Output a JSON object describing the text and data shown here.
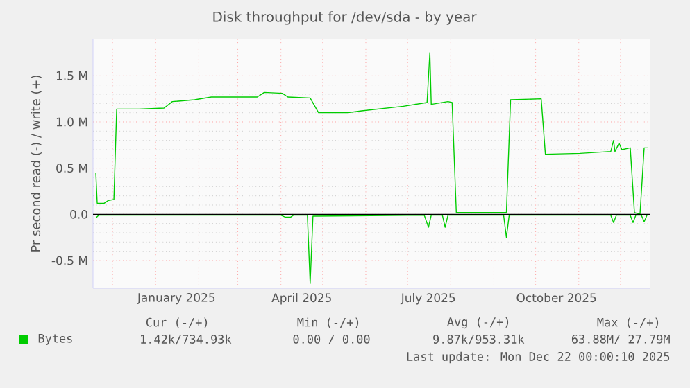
{
  "chart_data": {
    "type": "line",
    "title": "Disk throughput for /dev/sda - by year",
    "ylabel": "Pr second read (-) / write (+)",
    "xlim": [
      "2024-11-17",
      "2025-12-22"
    ],
    "xticks": [
      {
        "value": "2024-12-01",
        "label": null
      },
      {
        "value": "2025-01-01",
        "label": null
      },
      {
        "value": "2025-02-01",
        "label": null
      },
      {
        "value": "2025-03-01",
        "label": null
      },
      {
        "value": "2025-04-01",
        "label": null
      },
      {
        "value": "2025-05-01",
        "label": null
      },
      {
        "value": "2025-06-01",
        "label": null
      },
      {
        "value": "2025-07-01",
        "label": null
      },
      {
        "value": "2025-08-01",
        "label": null
      },
      {
        "value": "2025-09-01",
        "label": null
      },
      {
        "value": "2025-10-01",
        "label": null
      },
      {
        "value": "2025-11-01",
        "label": null
      },
      {
        "value": "2025-12-01",
        "label": null
      },
      {
        "value": "2025-01-16",
        "label": "January 2025"
      },
      {
        "value": "2025-04-16",
        "label": "April 2025"
      },
      {
        "value": "2025-07-16",
        "label": "July 2025"
      },
      {
        "value": "2025-10-16",
        "label": "October 2025"
      }
    ],
    "ylim": [
      -0.8,
      1.9
    ],
    "yticks": [
      {
        "value": -0.5,
        "label": "-0.5 M"
      },
      {
        "value": 0,
        "label": "0.0"
      },
      {
        "value": 0.5,
        "label": "0.5 M"
      },
      {
        "value": 1.0,
        "label": "1.0 M"
      },
      {
        "value": 1.5,
        "label": "1.5 M"
      }
    ],
    "series": [
      {
        "name": "Bytes",
        "color": "#00cc00",
        "x": [
          "2024-11-19",
          "2024-11-20",
          "2024-11-25",
          "2024-11-28",
          "2024-12-02",
          "2024-12-04",
          "2024-12-20",
          "2025-01-07",
          "2025-01-13",
          "2025-01-29",
          "2025-02-10",
          "2025-03-15",
          "2025-03-20",
          "2025-04-02",
          "2025-04-06",
          "2025-04-22",
          "2025-04-28",
          "2025-05-19",
          "2025-05-29",
          "2025-06-28",
          "2025-07-15",
          "2025-07-17",
          "2025-07-18",
          "2025-07-30",
          "2025-08-02",
          "2025-08-05",
          "2025-09-10",
          "2025-09-13",
          "2025-10-05",
          "2025-10-08",
          "2025-11-02",
          "2025-11-24",
          "2025-11-26",
          "2025-11-27",
          "2025-11-30",
          "2025-12-02",
          "2025-12-08",
          "2025-12-11",
          "2025-12-15",
          "2025-12-18",
          "2025-12-21"
        ],
        "values": [
          0.45,
          0.12,
          0.12,
          0.15,
          0.16,
          1.14,
          1.14,
          1.15,
          1.22,
          1.24,
          1.27,
          1.27,
          1.32,
          1.31,
          1.27,
          1.26,
          1.1,
          1.1,
          1.12,
          1.17,
          1.21,
          1.75,
          1.19,
          1.22,
          1.21,
          0.02,
          0.02,
          1.24,
          1.25,
          0.65,
          0.66,
          0.68,
          0.8,
          0.68,
          0.77,
          0.7,
          0.72,
          0.02,
          0.0,
          0.72,
          0.72
        ]
      },
      {
        "color": "#00cc00",
        "x": [
          "2024-11-19",
          "2024-11-21",
          "2025-04-01",
          "2025-04-04",
          "2025-04-08",
          "2025-04-10",
          "2025-04-20",
          "2025-04-22",
          "2025-04-24",
          "2025-07-13",
          "2025-07-16",
          "2025-07-18",
          "2025-07-26",
          "2025-07-28",
          "2025-07-30",
          "2025-09-08",
          "2025-09-10",
          "2025-09-12",
          "2025-11-24",
          "2025-11-26",
          "2025-11-28",
          "2025-12-08",
          "2025-12-10",
          "2025-12-12",
          "2025-12-16",
          "2025-12-18",
          "2025-12-20"
        ],
        "values": [
          -0.04,
          -0.01,
          -0.01,
          -0.03,
          -0.03,
          -0.01,
          -0.01,
          -0.75,
          -0.02,
          -0.01,
          -0.14,
          -0.01,
          -0.01,
          -0.14,
          -0.01,
          -0.01,
          -0.25,
          -0.01,
          -0.01,
          -0.09,
          -0.01,
          -0.01,
          -0.09,
          -0.01,
          -0.01,
          -0.08,
          -0.01
        ]
      }
    ],
    "ref_lines": [
      {
        "axis": "y",
        "value": 0,
        "color": "#000000"
      }
    ],
    "grid": true,
    "legend": "bottom left",
    "marker": "none",
    "line_style": "solid",
    "annotations": [
      "Cur (-/+)",
      "Min (-/+)",
      "Avg (-/+)",
      "Max (-/+)",
      "1.42k/734.93k",
      "0.00 /  0.00",
      "9.87k/953.31k",
      "63.88M/ 27.79M",
      "Last update: Mon Dec 22 00:00:10 2025"
    ]
  }
}
